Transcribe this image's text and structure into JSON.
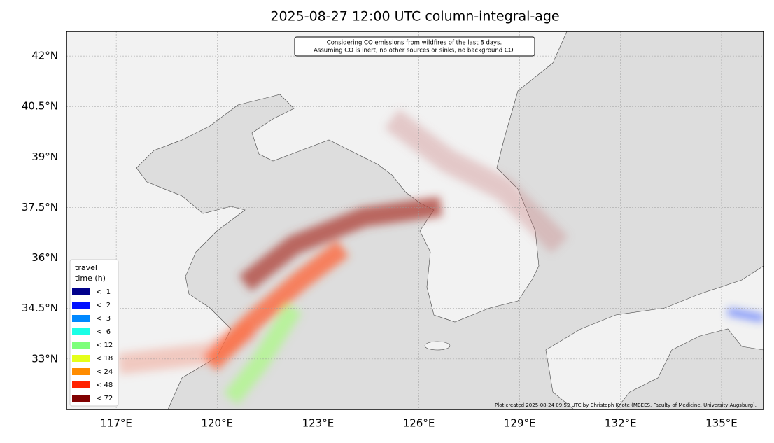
{
  "chart_data": {
    "type": "map",
    "title": "2025-08-27 12:00 UTC column-integral-age",
    "annotation": [
      "Considering CO emissions from wildfires of the last 8 days.",
      "Assuming CO is inert, no other sources or sinks, no background CO."
    ],
    "credit": "Plot created 2025-08-24 09:52 UTC by Christoph Knote (MBEES, Faculty of Medicine, University Augsburg).",
    "xlim": [
      115.52,
      136.25
    ],
    "ylim": [
      31.5,
      42.73
    ],
    "xticks": [
      {
        "value": 117,
        "label": "117°E"
      },
      {
        "value": 120,
        "label": "120°E"
      },
      {
        "value": 123,
        "label": "123°E"
      },
      {
        "value": 126,
        "label": "126°E"
      },
      {
        "value": 129,
        "label": "129°E"
      },
      {
        "value": 132,
        "label": "132°E"
      },
      {
        "value": 135,
        "label": "135°E"
      }
    ],
    "yticks": [
      {
        "value": 33,
        "label": "33°N"
      },
      {
        "value": 34.5,
        "label": "34.5°N"
      },
      {
        "value": 36,
        "label": "36°N"
      },
      {
        "value": 37.5,
        "label": "37.5°N"
      },
      {
        "value": 39,
        "label": "39°N"
      },
      {
        "value": 40.5,
        "label": "40.5°N"
      },
      {
        "value": 42,
        "label": "42°N"
      }
    ],
    "grid": true,
    "legend": {
      "title": [
        "travel",
        "time (h)"
      ],
      "entries": [
        {
          "label": "<  1",
          "color": "#00008b"
        },
        {
          "label": "<  2",
          "color": "#0010ff"
        },
        {
          "label": "<  3",
          "color": "#0088ff"
        },
        {
          "label": "<  6",
          "color": "#1affe6"
        },
        {
          "label": "< 12",
          "color": "#7dff7a"
        },
        {
          "label": "< 18",
          "color": "#e5ff1a"
        },
        {
          "label": "< 24",
          "color": "#ff8c00"
        },
        {
          "label": "< 48",
          "color": "#ff2200"
        },
        {
          "label": "< 72",
          "color": "#800000"
        }
      ]
    }
  }
}
